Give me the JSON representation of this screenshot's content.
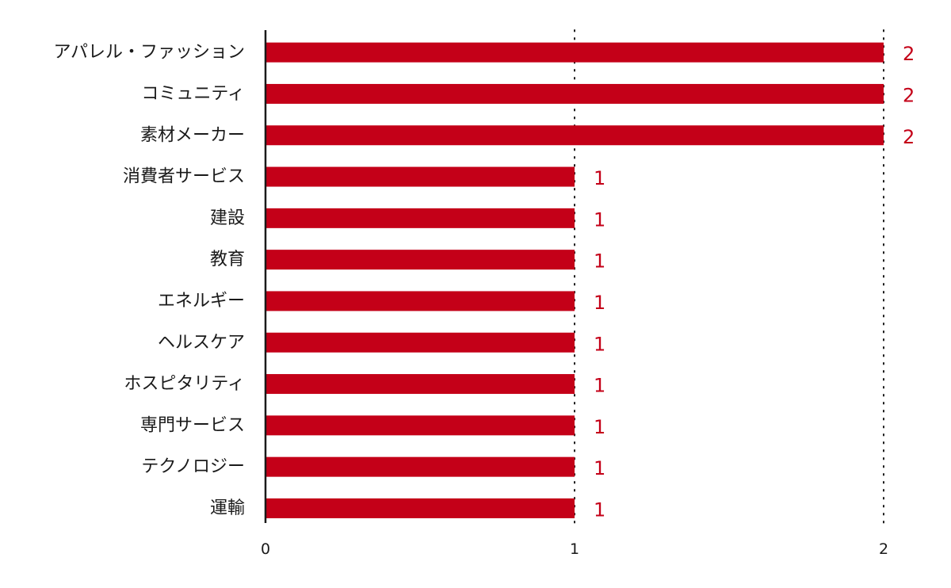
{
  "chart_data": {
    "type": "bar",
    "orientation": "horizontal",
    "title": "",
    "xlabel": "",
    "ylabel": "",
    "categories": [
      "アパレル・ファッション",
      "コミュニティ",
      "素材メーカー",
      "消費者サービス",
      "建設",
      "教育",
      "エネルギー",
      "ヘルスケア",
      "ホスピタリティ",
      "専門サービス",
      "テクノロジー",
      "運輸"
    ],
    "values": [
      2,
      2,
      2,
      1,
      1,
      1,
      1,
      1,
      1,
      1,
      1,
      1
    ],
    "data_labels": [
      "2",
      "2",
      "2",
      "1",
      "1",
      "1",
      "1",
      "1",
      "1",
      "1",
      "1",
      "1"
    ],
    "xlim": [
      0,
      2
    ],
    "x_ticks": [
      0,
      1,
      2
    ],
    "x_tick_labels": [
      "0",
      "1",
      "2"
    ],
    "grid": "vertical dotted lines at each tick",
    "legend": "none",
    "colors": {
      "bar": "#c40018",
      "data_label": "#c40018",
      "axis": "#1a1a1a",
      "grid": "#1a1a1a",
      "text": "#1a1a1a"
    }
  }
}
